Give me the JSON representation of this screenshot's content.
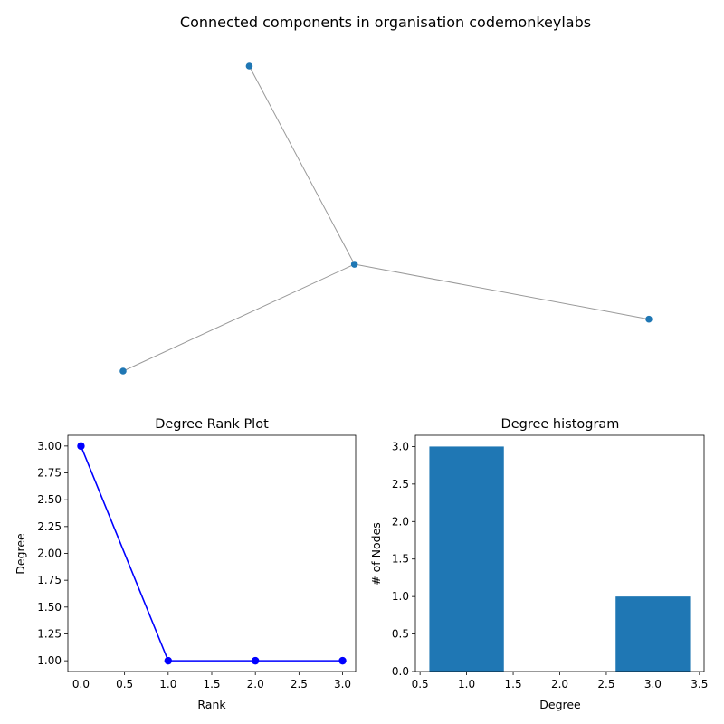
{
  "chart_data": [
    {
      "type": "network",
      "title": "Connected components in organisation codemonkeylabs",
      "node_color": "#1f77b4",
      "edge_color": "#999999",
      "nodes": [
        {
          "id": "a",
          "x": 0.24,
          "y": 1.0
        },
        {
          "id": "b",
          "x": 0.0,
          "y": 0.0
        },
        {
          "id": "c",
          "x": 0.44,
          "y": 0.35
        },
        {
          "id": "d",
          "x": 1.0,
          "y": 0.17
        }
      ],
      "edges": [
        [
          "c",
          "a"
        ],
        [
          "c",
          "b"
        ],
        [
          "c",
          "d"
        ]
      ]
    },
    {
      "type": "line",
      "title": "Degree Rank Plot",
      "xlabel": "Rank",
      "ylabel": "Degree",
      "x": [
        0,
        1,
        2,
        3
      ],
      "y": [
        3,
        1,
        1,
        1
      ],
      "color": "#0000ff",
      "marker": "circle",
      "xlim": [
        -0.15,
        3.15
      ],
      "ylim": [
        0.9,
        3.1
      ],
      "xticks": [
        0.0,
        0.5,
        1.0,
        1.5,
        2.0,
        2.5,
        3.0
      ],
      "xtick_labels": [
        "0.0",
        "0.5",
        "1.0",
        "1.5",
        "2.0",
        "2.5",
        "3.0"
      ],
      "yticks": [
        1.0,
        1.25,
        1.5,
        1.75,
        2.0,
        2.25,
        2.5,
        2.75,
        3.0
      ],
      "ytick_labels": [
        "1.00",
        "1.25",
        "1.50",
        "1.75",
        "2.00",
        "2.25",
        "2.50",
        "2.75",
        "3.00"
      ],
      "grid": false
    },
    {
      "type": "bar",
      "title": "Degree histogram",
      "xlabel": "Degree",
      "ylabel": "# of Nodes",
      "categories": [
        1,
        3
      ],
      "values": [
        3,
        1
      ],
      "bar_width": 0.8,
      "color": "#1f77b4",
      "xlim": [
        0.45,
        3.55
      ],
      "ylim": [
        0,
        3.15
      ],
      "xticks": [
        0.5,
        1.0,
        1.5,
        2.0,
        2.5,
        3.0,
        3.5
      ],
      "xtick_labels": [
        "0.5",
        "1.0",
        "1.5",
        "2.0",
        "2.5",
        "3.0",
        "3.5"
      ],
      "yticks": [
        0.0,
        0.5,
        1.0,
        1.5,
        2.0,
        2.5,
        3.0
      ],
      "ytick_labels": [
        "0.0",
        "0.5",
        "1.0",
        "1.5",
        "2.0",
        "2.5",
        "3.0"
      ],
      "grid": false
    }
  ]
}
